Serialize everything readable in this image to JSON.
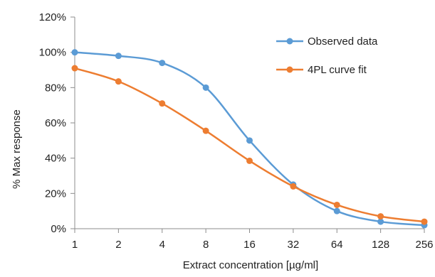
{
  "chart_data": {
    "type": "line",
    "x_scale": "log2",
    "categories": [
      "1",
      "2",
      "4",
      "8",
      "16",
      "32",
      "64",
      "128",
      "256"
    ],
    "x": [
      1,
      2,
      4,
      8,
      16,
      32,
      64,
      128,
      256
    ],
    "xlabel": "Extract concentration [µg/ml]",
    "ylabel": "% Max response",
    "ylim": [
      0,
      120
    ],
    "yticks": [
      0,
      20,
      40,
      60,
      80,
      100,
      120
    ],
    "ytick_labels": [
      "0%",
      "20%",
      "40%",
      "60%",
      "80%",
      "100%",
      "120%"
    ],
    "grid": false,
    "legend_position": "top-right",
    "series": [
      {
        "name": "Observed data",
        "color": "#5B9BD5",
        "values": [
          100,
          98,
          94,
          80,
          50,
          25,
          10,
          4,
          2
        ]
      },
      {
        "name": "4PL curve fit",
        "color": "#ED7D31",
        "values": [
          91,
          83.5,
          71,
          55.5,
          38.5,
          24,
          13.5,
          7,
          4
        ]
      }
    ]
  }
}
